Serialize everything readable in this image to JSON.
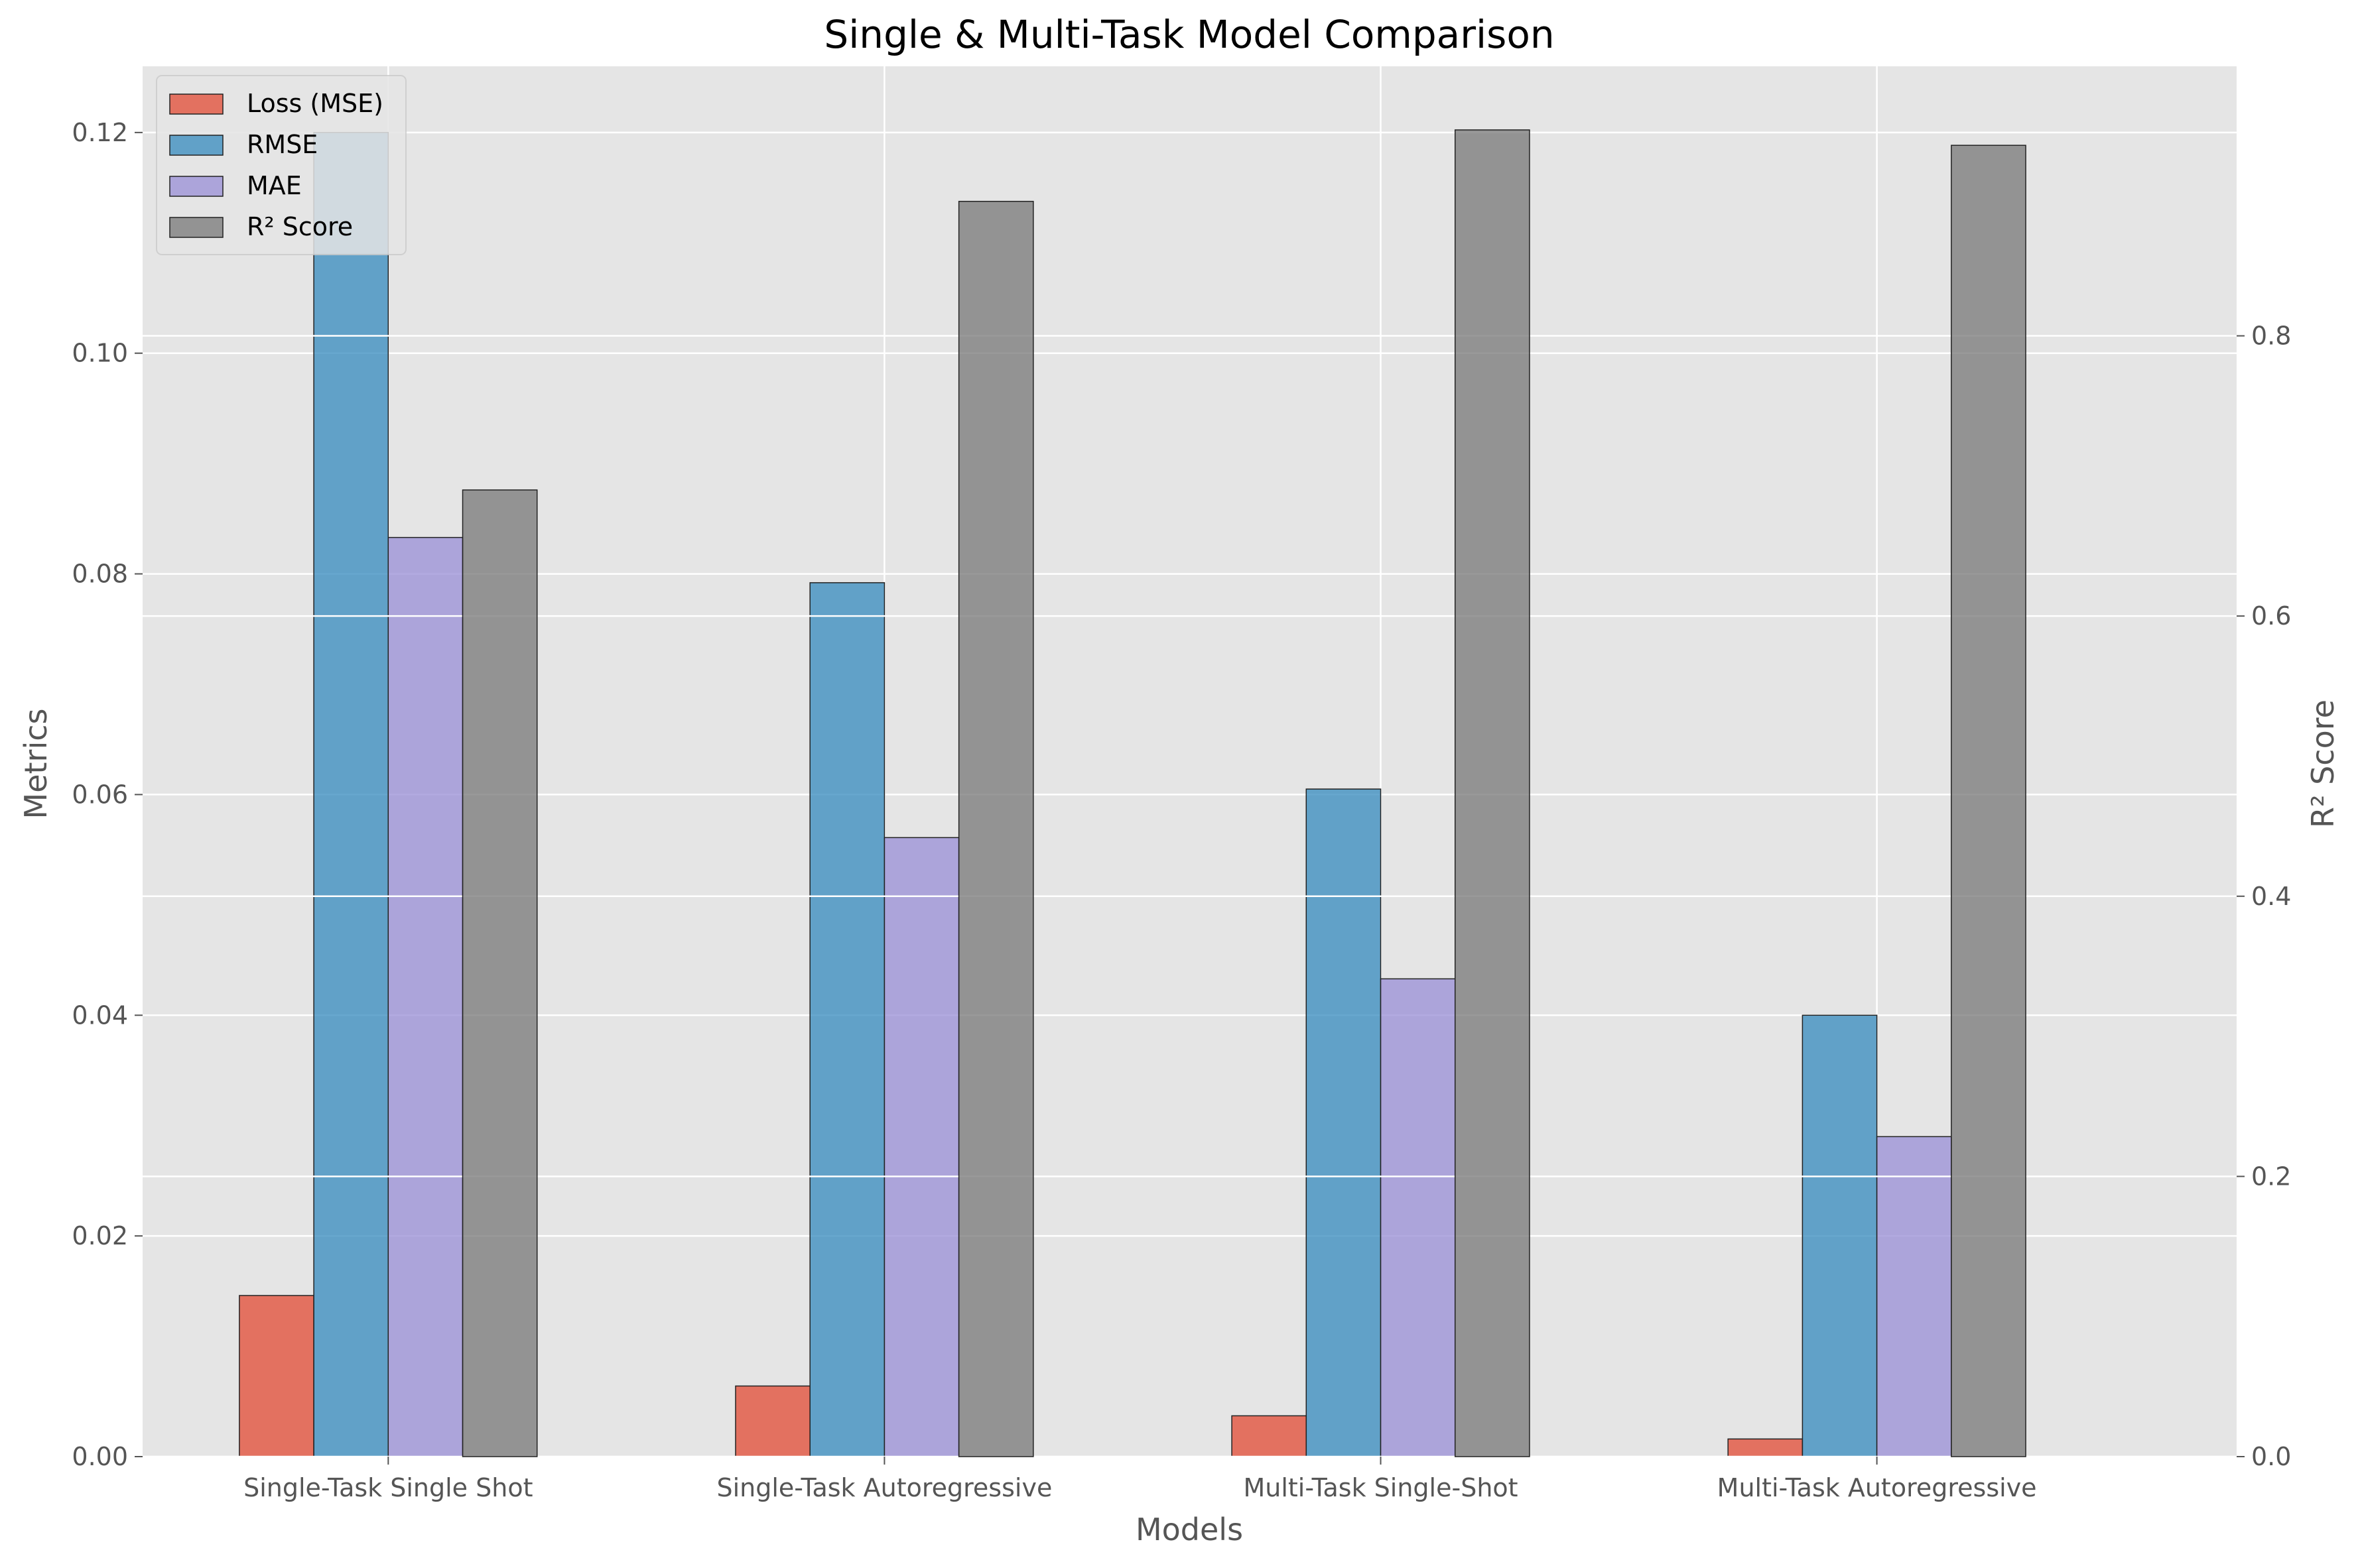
{
  "chart_data": {
    "type": "bar",
    "title": "Single & Multi-Task Model Comparison",
    "xlabel": "Models",
    "ylabel": "Metrics",
    "ylabel_right": "R² Score",
    "categories": [
      "Single-Task Single Shot",
      "Single-Task Autoregressive",
      "Multi-Task Single-Shot",
      "Multi-Task Autoregressive"
    ],
    "ylim": [
      0,
      0.126
    ],
    "ylim_right": [
      0,
      0.9924
    ],
    "yticks": [
      "0.00",
      "0.02",
      "0.04",
      "0.06",
      "0.08",
      "0.10",
      "0.12"
    ],
    "yticks_right": [
      "0.0",
      "0.2",
      "0.4",
      "0.6",
      "0.8"
    ],
    "grid": true,
    "legend_position": "top-left",
    "series": [
      {
        "name": "Loss (MSE)",
        "axis": "left",
        "color": "#E24A33",
        "values": [
          0.0146,
          0.0064,
          0.0037,
          0.0016
        ]
      },
      {
        "name": "RMSE",
        "axis": "left",
        "color": "#348ABD",
        "values": [
          0.12,
          0.0792,
          0.0605,
          0.04
        ]
      },
      {
        "name": "MAE",
        "axis": "left",
        "color": "#988ED5",
        "values": [
          0.0833,
          0.0561,
          0.0433,
          0.029
        ]
      },
      {
        "name": "R² Score",
        "axis": "right",
        "color": "#777777",
        "values": [
          0.69,
          0.896,
          0.947,
          0.936
        ]
      }
    ]
  }
}
